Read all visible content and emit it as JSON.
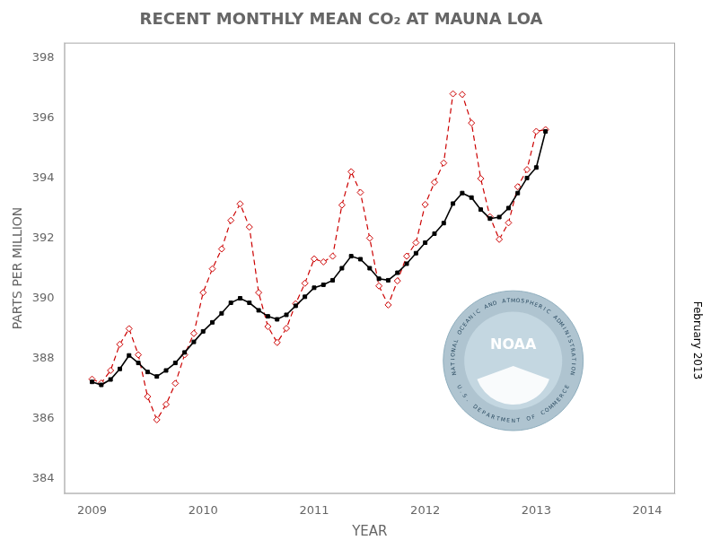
{
  "chart_data": {
    "type": "line",
    "title": "RECENT MONTHLY MEAN CO₂ AT MAUNA LOA",
    "xlabel": "YEAR",
    "ylabel": "PARTS PER MILLION",
    "x": [
      2009,
      2009.0833333333333,
      2009.1666666666667,
      2009.25,
      2009.3333333333333,
      2009.4166666666667,
      2009.5,
      2009.5833333333333,
      2009.6666666666667,
      2009.75,
      2009.8333333333333,
      2009.9166666666667,
      2010,
      2010.0833333333333,
      2010.1666666666667,
      2010.25,
      2010.3333333333333,
      2010.4166666666667,
      2010.5,
      2010.5833333333333,
      2010.6666666666667,
      2010.75,
      2010.8333333333333,
      2010.9166666666667,
      2011,
      2011.0833333333333,
      2011.1666666666667,
      2011.25,
      2011.3333333333333,
      2011.4166666666667,
      2011.5,
      2011.5833333333333,
      2011.6666666666667,
      2011.75,
      2011.8333333333333,
      2011.9166666666667,
      2012,
      2012.0833333333333,
      2012.1666666666667,
      2012.25,
      2012.3333333333333,
      2012.4166666666667,
      2012.5,
      2012.5833333333333,
      2012.6666666666667,
      2012.75,
      2012.8333333333333,
      2012.9166666666667,
      2013,
      2013.0833333333333
    ],
    "series": [
      {
        "color": "#cc0000",
        "marker": "diamond",
        "line_style": "dashed",
        "values": [
          387.31,
          387.18,
          387.6,
          388.47,
          388.99,
          388.12,
          386.73,
          385.96,
          386.47,
          387.17,
          388.12,
          388.83,
          390.19,
          390.98,
          391.64,
          392.59,
          393.14,
          392.37,
          390.19,
          389.06,
          388.53,
          389.0,
          389.82,
          390.5,
          391.31,
          391.21,
          391.4,
          393.1,
          394.21,
          393.52,
          392.0,
          390.41,
          389.78,
          390.58,
          391.4,
          391.85,
          393.12,
          393.86,
          394.5,
          396.8,
          396.78,
          395.83,
          393.98,
          392.71,
          391.96,
          392.51,
          393.71,
          394.28,
          395.55,
          395.61
        ]
      },
      {
        "color": "#000000",
        "marker": "square",
        "line_style": "solid",
        "values": [
          387.22,
          387.12,
          387.3,
          387.65,
          388.1,
          387.85,
          387.55,
          387.4,
          387.6,
          387.85,
          388.2,
          388.55,
          388.9,
          389.2,
          389.5,
          389.85,
          390.0,
          389.85,
          389.6,
          389.4,
          389.3,
          389.45,
          389.75,
          390.05,
          390.35,
          390.45,
          390.6,
          391.0,
          391.4,
          391.3,
          391.0,
          390.65,
          390.6,
          390.85,
          391.15,
          391.5,
          391.85,
          392.15,
          392.5,
          393.15,
          393.5,
          393.35,
          392.95,
          392.65,
          392.7,
          393.0,
          393.5,
          394.0,
          394.35,
          395.55
        ]
      }
    ],
    "xlim": [
      2008.75,
      2014.25
    ],
    "ylim": [
      383.5,
      398.5
    ],
    "xticks": [
      2009,
      2010,
      2011,
      2012,
      2013,
      2014
    ],
    "yticks": [
      384,
      386,
      388,
      390,
      392,
      394,
      396,
      398
    ],
    "grid": false,
    "annotations": [
      "February 2013",
      "NOAA",
      "NATIONAL OCEANIC AND ATMOSPHERIC ADMINISTRATION",
      "U.S. DEPARTMENT OF COMMERCE"
    ]
  }
}
